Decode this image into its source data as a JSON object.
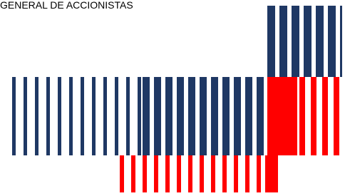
{
  "header": {
    "title": "GENERAL DE ACCIONISTAS"
  }
}
